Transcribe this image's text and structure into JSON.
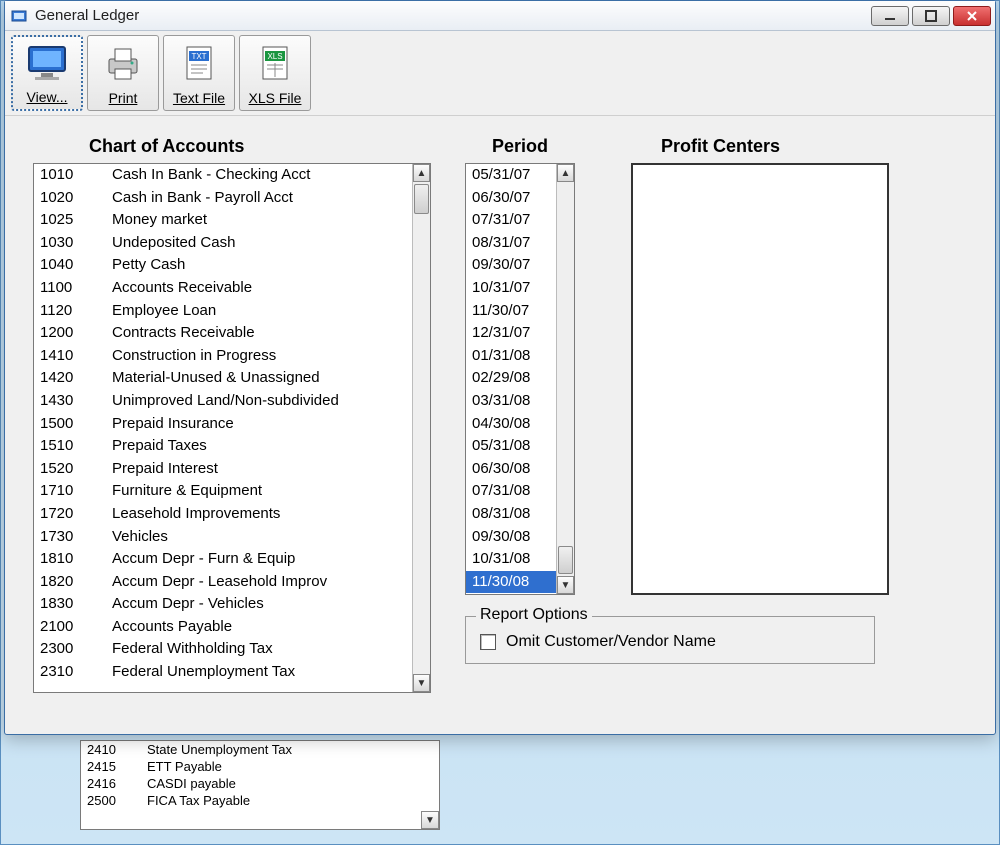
{
  "window": {
    "title": "General Ledger"
  },
  "toolbar": {
    "view": "View...",
    "print": "Print",
    "textfile": "Text File",
    "xlsfile": "XLS File"
  },
  "labels": {
    "accounts": "Chart of Accounts",
    "period": "Period",
    "profit": "Profit Centers",
    "report_options": "Report Options",
    "omit": "Omit Customer/Vendor Name"
  },
  "accounts": [
    {
      "code": "1010",
      "name": "Cash In Bank - Checking Acct"
    },
    {
      "code": "1020",
      "name": "Cash in Bank - Payroll Acct"
    },
    {
      "code": "1025",
      "name": "Money market"
    },
    {
      "code": "1030",
      "name": "Undeposited Cash"
    },
    {
      "code": "1040",
      "name": "Petty Cash"
    },
    {
      "code": "1100",
      "name": "Accounts Receivable"
    },
    {
      "code": "1120",
      "name": "Employee Loan"
    },
    {
      "code": "1200",
      "name": "Contracts Receivable"
    },
    {
      "code": "1410",
      "name": "Construction in Progress"
    },
    {
      "code": "1420",
      "name": "Material-Unused & Unassigned"
    },
    {
      "code": "1430",
      "name": "Unimproved Land/Non-subdivided"
    },
    {
      "code": "1500",
      "name": "Prepaid Insurance"
    },
    {
      "code": "1510",
      "name": "Prepaid Taxes"
    },
    {
      "code": "1520",
      "name": "Prepaid Interest"
    },
    {
      "code": "1710",
      "name": "Furniture & Equipment"
    },
    {
      "code": "1720",
      "name": "Leasehold Improvements"
    },
    {
      "code": "1730",
      "name": "Vehicles"
    },
    {
      "code": "1810",
      "name": "Accum Depr - Furn & Equip"
    },
    {
      "code": "1820",
      "name": "Accum Depr - Leasehold Improv"
    },
    {
      "code": "1830",
      "name": "Accum Depr - Vehicles"
    },
    {
      "code": "2100",
      "name": "Accounts Payable"
    },
    {
      "code": "2300",
      "name": "Federal Withholding Tax"
    },
    {
      "code": "2310",
      "name": "Federal Unemployment Tax"
    }
  ],
  "periods": [
    "05/31/07",
    "06/30/07",
    "07/31/07",
    "08/31/07",
    "09/30/07",
    "10/31/07",
    "11/30/07",
    "12/31/07",
    "01/31/08",
    "02/29/08",
    "03/31/08",
    "04/30/08",
    "05/31/08",
    "06/30/08",
    "07/31/08",
    "08/31/08",
    "09/30/08",
    "10/31/08",
    "11/30/08"
  ],
  "period_selected_index": 18,
  "bg_accounts": [
    {
      "code": "2410",
      "name": "State Unemployment Tax"
    },
    {
      "code": "2415",
      "name": "ETT Payable"
    },
    {
      "code": "2416",
      "name": "CASDI payable"
    },
    {
      "code": "2500",
      "name": "FICA Tax Payable"
    }
  ],
  "colors": {
    "selection": "#2f6fcf",
    "window_bg": "#f0f0f0",
    "close_btn": "#c83030"
  }
}
